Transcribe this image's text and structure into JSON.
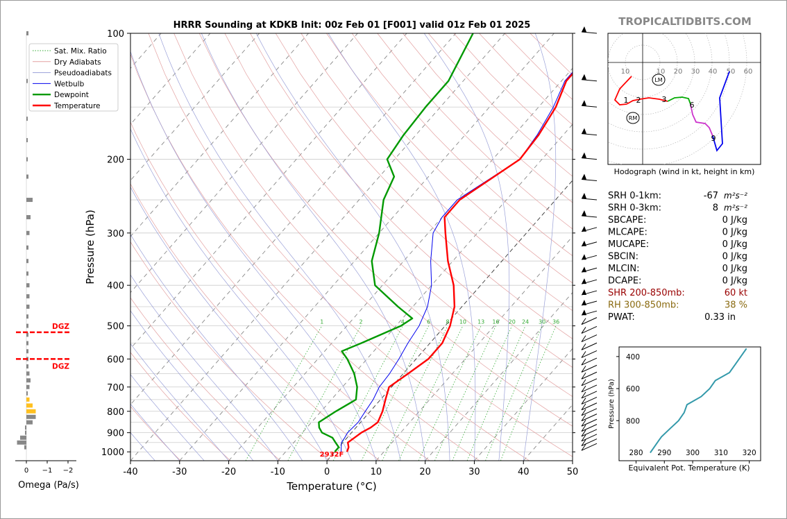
{
  "header": {
    "title": "HRRR Sounding at KDKB Init: 00z Feb 01 [F001] valid 01z Feb 01 2025",
    "watermark": "TROPICALTIDBITS.COM"
  },
  "omega_panel": {
    "xlabel": "Omega (Pa/s)",
    "ticks": [
      "0",
      "−1",
      "−2"
    ],
    "dgz_label": "DGZ",
    "dgz_top_hpa": 518,
    "dgz_bottom_hpa": 600,
    "bars_hpa": [
      100,
      130,
      160,
      180,
      200,
      220,
      250,
      275,
      300,
      325,
      350,
      375,
      400,
      425,
      450,
      475,
      500,
      525,
      550,
      575,
      600,
      625,
      650,
      675,
      700,
      725,
      750,
      775,
      800,
      825,
      850,
      875,
      900,
      925,
      950,
      975
    ],
    "bars_omega": [
      -0.1,
      -0.05,
      -0.05,
      -0.05,
      -0.05,
      -0.1,
      -0.3,
      -0.2,
      -0.15,
      -0.1,
      -0.1,
      -0.1,
      -0.15,
      -0.15,
      -0.15,
      -0.1,
      -0.1,
      -0.1,
      -0.1,
      -0.1,
      -0.1,
      -0.1,
      -0.15,
      -0.2,
      -0.15,
      -0.05,
      -0.15,
      -0.3,
      -0.45,
      -0.45,
      -0.3,
      0.0,
      0.0,
      0.3,
      0.45,
      0.1
    ],
    "bars_color_neg": "#ffc020",
    "bars_color_pos": "#888888"
  },
  "skewt": {
    "ylabel": "Pressure (hPa)",
    "xlabel": "Temperature (°C)",
    "pressure_ticks": [
      100,
      200,
      300,
      400,
      500,
      600,
      700,
      800,
      900,
      1000
    ],
    "temp_ticks": [
      -40,
      -30,
      -20,
      -10,
      0,
      10,
      20,
      30,
      40,
      50
    ],
    "mixing_ratio_labels": [
      "1",
      "2",
      "4",
      "6",
      "8",
      "10",
      "13",
      "16",
      "20",
      "24",
      "30",
      "36"
    ],
    "surface_label": "2932F",
    "legend": {
      "sat_mix": "Sat. Mix. Ratio",
      "dry": "Dry Adiabats",
      "pseudo": "Pseudoadiabats",
      "wetbulb": "Wetbulb",
      "dewpoint": "Dewpoint",
      "temperature": "Temperature"
    },
    "colors": {
      "temperature": "#ff0000",
      "dewpoint": "#009900",
      "wetbulb": "#0000ee",
      "dgz": "#ff0000"
    }
  },
  "chart_data": {
    "type": "line",
    "title": "HRRR Sounding at KDKB Init: 00z Feb 01 [F001] valid 01z Feb 01 2025",
    "xlabel": "Temperature (°C)",
    "ylabel": "Pressure (hPa)",
    "xlim": [
      -40,
      50
    ],
    "ylim": [
      1050,
      100
    ],
    "y_scale": "log",
    "series": [
      {
        "name": "Temperature",
        "points": [
          [
            1000,
            2.5
          ],
          [
            975,
            2.0
          ],
          [
            950,
            1.0
          ],
          [
            925,
            1.5
          ],
          [
            900,
            2.0
          ],
          [
            875,
            3.0
          ],
          [
            850,
            3.5
          ],
          [
            800,
            2.5
          ],
          [
            750,
            1.0
          ],
          [
            700,
            -0.5
          ],
          [
            650,
            1.0
          ],
          [
            600,
            2.5
          ],
          [
            550,
            2.5
          ],
          [
            500,
            1.0
          ],
          [
            450,
            -1.5
          ],
          [
            400,
            -5.5
          ],
          [
            350,
            -11.0
          ],
          [
            300,
            -16.5
          ],
          [
            275,
            -19.5
          ],
          [
            250,
            -19.5
          ],
          [
            200,
            -14.5
          ],
          [
            175,
            -15.0
          ],
          [
            150,
            -16.5
          ],
          [
            130,
            -19.0
          ],
          [
            100,
            -19.0
          ]
        ]
      },
      {
        "name": "Dewpoint",
        "points": [
          [
            1000,
            0.0
          ],
          [
            975,
            0.0
          ],
          [
            950,
            -1.5
          ],
          [
            925,
            -3.0
          ],
          [
            900,
            -6.0
          ],
          [
            875,
            -7.5
          ],
          [
            850,
            -8.5
          ],
          [
            800,
            -7.0
          ],
          [
            750,
            -5.0
          ],
          [
            700,
            -7.0
          ],
          [
            650,
            -10.0
          ],
          [
            600,
            -14.0
          ],
          [
            575,
            -16.5
          ],
          [
            550,
            -14.0
          ],
          [
            500,
            -9.0
          ],
          [
            480,
            -8.0
          ],
          [
            450,
            -13.0
          ],
          [
            400,
            -21.5
          ],
          [
            350,
            -26.5
          ],
          [
            300,
            -30.0
          ],
          [
            250,
            -35.0
          ],
          [
            220,
            -37.0
          ],
          [
            200,
            -41.5
          ],
          [
            175,
            -42.5
          ],
          [
            150,
            -43.0
          ],
          [
            130,
            -43.0
          ],
          [
            100,
            -46.5
          ]
        ]
      },
      {
        "name": "Wetbulb",
        "points": [
          [
            1000,
            1.3
          ],
          [
            975,
            0.5
          ],
          [
            950,
            -0.3
          ],
          [
            925,
            -0.5
          ],
          [
            900,
            -0.8
          ],
          [
            850,
            -0.5
          ],
          [
            800,
            -1.0
          ],
          [
            750,
            -1.5
          ],
          [
            700,
            -2.5
          ],
          [
            650,
            -2.8
          ],
          [
            600,
            -3.5
          ],
          [
            550,
            -4.5
          ],
          [
            500,
            -5.3
          ],
          [
            450,
            -7.0
          ],
          [
            400,
            -10.0
          ],
          [
            350,
            -14.5
          ],
          [
            300,
            -19.0
          ],
          [
            275,
            -20.0
          ],
          [
            250,
            -20.0
          ],
          [
            200,
            -14.5
          ],
          [
            175,
            -15.3
          ],
          [
            150,
            -17.0
          ],
          [
            130,
            -19.3
          ],
          [
            100,
            -19.2
          ]
        ]
      }
    ]
  },
  "hodograph": {
    "caption": "Hodograph (wind in kt, height in km)",
    "ring_labels": [
      "10",
      "10",
      "20",
      "30",
      "40",
      "50",
      "60"
    ],
    "point_labels": [
      "1",
      "2",
      "3",
      "6",
      "9"
    ],
    "lm_label": "LM",
    "rm_label": "RM"
  },
  "indices": {
    "rows": [
      {
        "label": "SRH 0-1km:",
        "value": "-67",
        "unit": "m²s⁻²"
      },
      {
        "label": "SRH 0-3km:",
        "value": "8",
        "unit": "m²s⁻²"
      },
      {
        "label": "SBCAPE:",
        "value": "0 J/kg",
        "unit": ""
      },
      {
        "label": "MLCAPE:",
        "value": "0 J/kg",
        "unit": ""
      },
      {
        "label": "MUCAPE:",
        "value": "0 J/kg",
        "unit": ""
      },
      {
        "label": "SBCIN:",
        "value": "0 J/kg",
        "unit": ""
      },
      {
        "label": "MLCIN:",
        "value": "0 J/kg",
        "unit": ""
      },
      {
        "label": "DCAPE:",
        "value": "0 J/kg",
        "unit": ""
      },
      {
        "label": "SHR 200-850mb:",
        "value": "60 kt",
        "unit": ""
      },
      {
        "label": "RH 300-850mb:",
        "value": "38 %",
        "unit": ""
      },
      {
        "label": "PWAT:",
        "value": "0.33 in",
        "unit": ""
      }
    ],
    "shr_color": "#990000",
    "rh_color": "#8a6a10"
  },
  "theta_e": {
    "ylabel": "Pressure (hPa)",
    "xlabel": "Equivalent Pot. Temperature (K)",
    "x_ticks": [
      "280",
      "290",
      "300",
      "310",
      "320"
    ],
    "y_ticks": [
      "400",
      "600",
      "800"
    ],
    "line_color": "#3399aa",
    "profile": [
      [
        1000,
        285
      ],
      [
        975,
        286
      ],
      [
        950,
        287
      ],
      [
        925,
        288
      ],
      [
        900,
        289
      ],
      [
        850,
        292
      ],
      [
        800,
        295
      ],
      [
        750,
        297
      ],
      [
        700,
        298
      ],
      [
        650,
        303
      ],
      [
        600,
        306
      ],
      [
        550,
        308
      ],
      [
        500,
        313
      ],
      [
        450,
        315
      ],
      [
        400,
        317
      ],
      [
        350,
        319
      ]
    ]
  }
}
